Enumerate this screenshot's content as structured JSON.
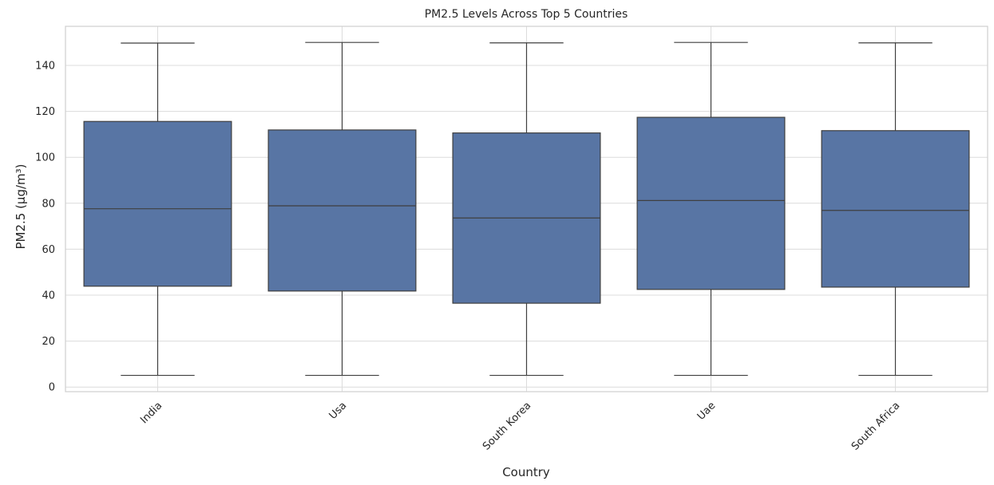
{
  "chart_data": {
    "type": "box",
    "title": "PM2.5 Levels Across Top 5 Countries",
    "xlabel": "Country",
    "ylabel": "PM2.5 (µg/m³)",
    "ylim": [
      -2,
      157
    ],
    "yticks": [
      0,
      20,
      40,
      60,
      80,
      100,
      120,
      140
    ],
    "grid": true,
    "box_color": "#5875a4",
    "categories": [
      "India",
      "Usa",
      "South Korea",
      "Uae",
      "South Africa"
    ],
    "boxes": [
      {
        "min": 5.1,
        "q1": 43.9,
        "median": 77.6,
        "q3": 115.6,
        "max": 149.7
      },
      {
        "min": 5.1,
        "q1": 41.8,
        "median": 78.9,
        "q3": 111.9,
        "max": 150.0
      },
      {
        "min": 5.1,
        "q1": 36.5,
        "median": 73.6,
        "q3": 110.6,
        "max": 149.8
      },
      {
        "min": 5.1,
        "q1": 42.5,
        "median": 81.2,
        "q3": 117.4,
        "max": 150.0
      },
      {
        "min": 5.1,
        "q1": 43.5,
        "median": 76.9,
        "q3": 111.6,
        "max": 149.8
      }
    ]
  }
}
